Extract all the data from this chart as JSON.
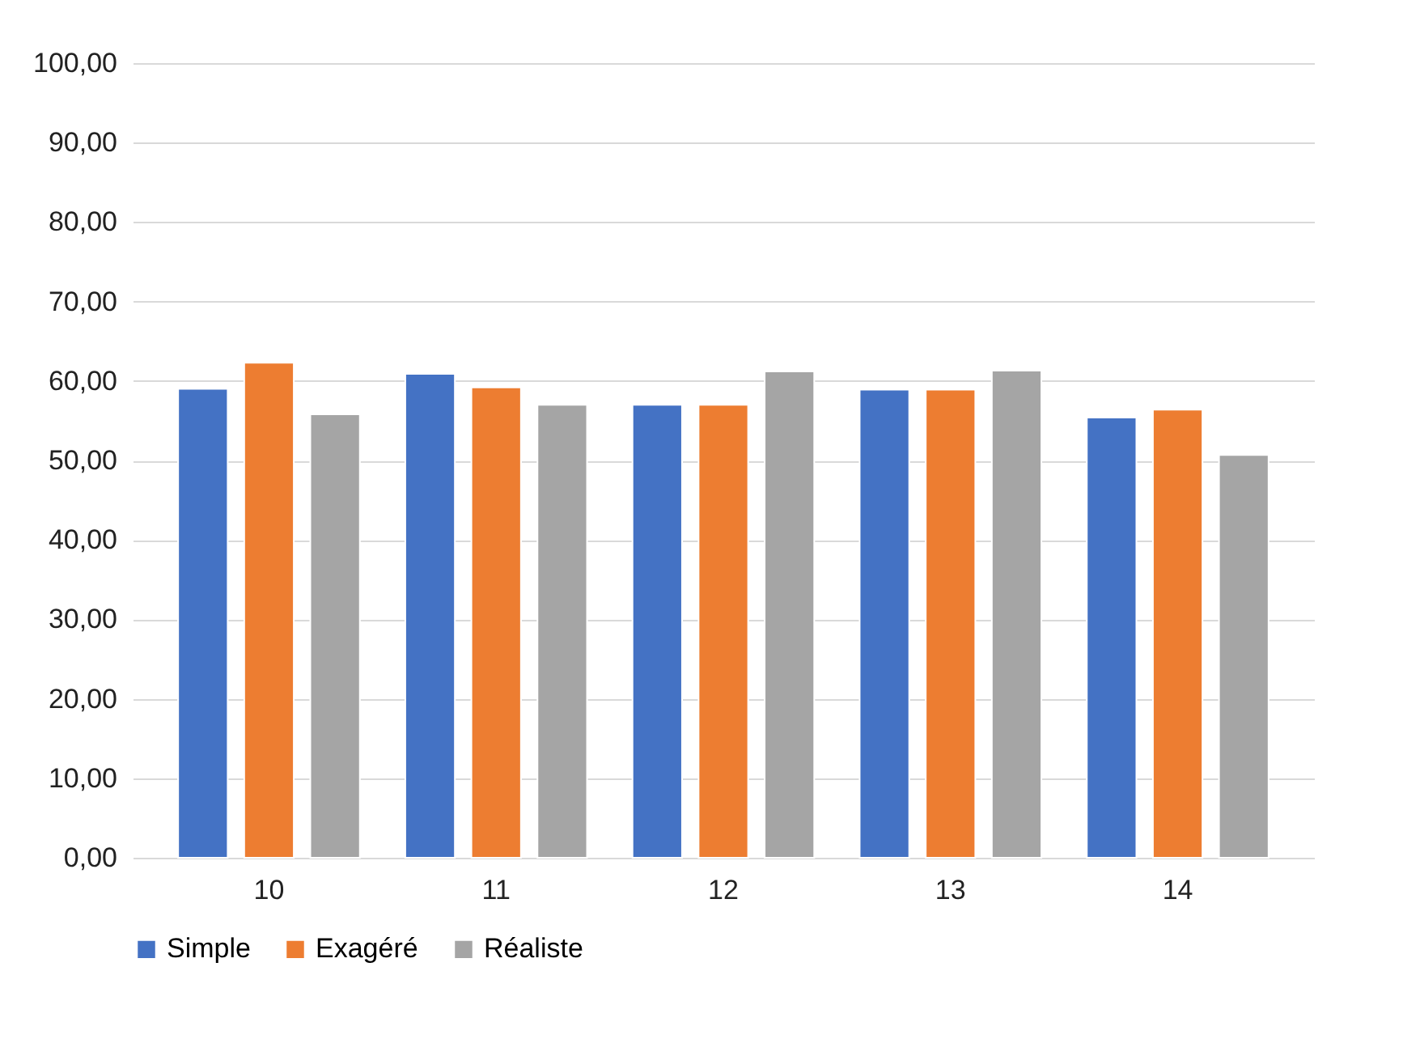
{
  "chart_data": {
    "type": "bar",
    "categories": [
      "10",
      "11",
      "12",
      "13",
      "14"
    ],
    "series": [
      {
        "name": "Simple",
        "color": "#4472c4",
        "values": [
          59.0,
          60.9,
          57.0,
          58.9,
          55.4
        ]
      },
      {
        "name": "Exagéré",
        "color": "#ed7d31",
        "values": [
          62.3,
          59.2,
          57.0,
          58.9,
          56.4
        ]
      },
      {
        "name": "Réaliste",
        "color": "#a5a5a5",
        "values": [
          55.8,
          57.0,
          61.2,
          61.3,
          50.7
        ]
      }
    ],
    "ylim": [
      0,
      100
    ],
    "yticks": [
      {
        "value": 0,
        "label": "0,00"
      },
      {
        "value": 10,
        "label": "10,00"
      },
      {
        "value": 20,
        "label": "20,00"
      },
      {
        "value": 30,
        "label": "30,00"
      },
      {
        "value": 40,
        "label": "40,00"
      },
      {
        "value": 50,
        "label": "50,00"
      },
      {
        "value": 60,
        "label": "60,00"
      },
      {
        "value": 70,
        "label": "70,00"
      },
      {
        "value": 80,
        "label": "80,00"
      },
      {
        "value": 90,
        "label": "90,00"
      },
      {
        "value": 100,
        "label": "100,00"
      }
    ],
    "grid": "y",
    "legend": "bottom"
  }
}
